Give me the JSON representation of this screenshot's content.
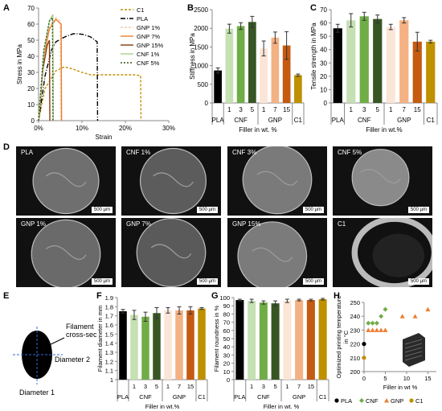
{
  "panel_letters": {
    "A": "A",
    "B": "B",
    "C": "C",
    "D": "D",
    "E": "E",
    "F": "F",
    "G": "G",
    "H": "H"
  },
  "colors": {
    "PLA": "#000000",
    "CNF1": "#c5e0b3",
    "CNF3": "#70ad47",
    "CNF5": "#375623",
    "GNP1": "#fbe5d6",
    "GNP7": "#f4b183",
    "GNP15": "#c55a11",
    "C1": "#bf9000",
    "CNF": "#70ad47",
    "GNP": "#f4b183",
    "C1H": "#bf9000"
  },
  "chart_data": [
    {
      "id": "A",
      "type": "line",
      "xlabel": "Strain",
      "ylabel": "Stress in MPa",
      "xlim": [
        0,
        30
      ],
      "ylim": [
        0,
        70
      ],
      "xticks": [
        "0%",
        "10%",
        "20%",
        "30%"
      ],
      "yticks": [
        "0",
        "10",
        "20",
        "30",
        "40",
        "50",
        "60",
        "70"
      ],
      "legend_position": "top-right",
      "series": [
        {
          "name": "C1",
          "color": "#bf9000",
          "dash": "3,2",
          "x": [
            0,
            1.5,
            4,
            6,
            8,
            10,
            12,
            14,
            22,
            23.5,
            23.6
          ],
          "y": [
            0,
            20,
            31,
            33.5,
            32,
            30,
            28.5,
            28.5,
            28.5,
            28,
            0
          ]
        },
        {
          "name": "PLA",
          "color": "#000000",
          "dash": "6,2,1,2",
          "x": [
            0,
            1.5,
            3,
            4,
            6,
            8,
            9,
            10.5,
            12,
            13,
            13.5,
            13.6
          ],
          "y": [
            0,
            28,
            44,
            49,
            52,
            54,
            54,
            53.5,
            52,
            50,
            49,
            0
          ]
        },
        {
          "name": "GNP 1%",
          "color": "#f7c9a5",
          "dash": "3,2",
          "x": [
            0,
            1.2,
            2.5,
            4,
            5,
            5.1
          ],
          "y": [
            0,
            40,
            58,
            64,
            62,
            0
          ]
        },
        {
          "name": "GNP 7%",
          "color": "#ed7d31",
          "dash": "",
          "x": [
            0,
            1.2,
            2.5,
            4,
            5.2,
            5.3
          ],
          "y": [
            0,
            40,
            57,
            63,
            60,
            0
          ]
        },
        {
          "name": "GNP 15%",
          "color": "#843c0c",
          "dash": "",
          "x": [
            0,
            1,
            2,
            2.5,
            2.6
          ],
          "y": [
            0,
            32,
            47,
            50,
            0
          ]
        },
        {
          "name": "CNF 1%",
          "color": "#a9d18e",
          "dash": "",
          "x": [
            0,
            1.2,
            2.5,
            3.3,
            3.4
          ],
          "y": [
            0,
            42,
            62,
            66,
            0
          ]
        },
        {
          "name": "CNF 5%",
          "color": "#375623",
          "dash": "2,2",
          "x": [
            0,
            1.2,
            2.5,
            3.2,
            3.3
          ],
          "y": [
            0,
            44,
            62,
            64,
            0
          ]
        }
      ]
    },
    {
      "id": "B",
      "type": "bar",
      "ylabel": "Stiffness in MPa",
      "xlabel": "Filler in wt. %",
      "ylim": [
        0,
        2500
      ],
      "yticks": [
        "0",
        "500",
        "1000",
        "1500",
        "2000",
        "2500"
      ],
      "categories": [
        "PLA",
        "1",
        "3",
        "5",
        "1",
        "7",
        "15",
        "C1"
      ],
      "groups": [
        "PLA",
        "CNF",
        "GNP",
        "C1"
      ],
      "values": [
        870,
        1990,
        2060,
        2170,
        1460,
        1750,
        1540,
        745
      ],
      "errors": [
        70,
        120,
        90,
        150,
        200,
        150,
        370,
        30
      ]
    },
    {
      "id": "C",
      "type": "bar",
      "ylabel": "Tensile strength in MPa",
      "xlabel": "Filler in wt.%",
      "ylim": [
        0,
        70
      ],
      "yticks": [
        "0",
        "10",
        "20",
        "30",
        "40",
        "50",
        "60",
        "70"
      ],
      "categories": [
        "PLA",
        "1",
        "3",
        "5",
        "1",
        "7",
        "15",
        "C1"
      ],
      "groups": [
        "PLA",
        "CNF",
        "GNP",
        "C1"
      ],
      "values": [
        56,
        62,
        65,
        63,
        57,
        62,
        46,
        46
      ],
      "errors": [
        3,
        5,
        3,
        3,
        2,
        2,
        7,
        1
      ]
    },
    {
      "id": "F",
      "type": "bar",
      "ylabel": "Filament diameter in mm",
      "xlabel": "Filler in wt.%",
      "ylim": [
        1,
        1.9
      ],
      "yticks": [
        "1",
        "1.1",
        "1.2",
        "1.3",
        "1.4",
        "1.5",
        "1.6",
        "1.7",
        "1.8",
        "1.9"
      ],
      "categories": [
        "PLA",
        "1",
        "3",
        "5",
        "1",
        "7",
        "15",
        "C1"
      ],
      "groups": [
        "PLA",
        "CNF",
        "GNP",
        "C1"
      ],
      "values": [
        1.75,
        1.71,
        1.69,
        1.73,
        1.76,
        1.76,
        1.76,
        1.78
      ],
      "errors": [
        0.02,
        0.05,
        0.05,
        0.06,
        0.03,
        0.04,
        0.04,
        0.01
      ]
    },
    {
      "id": "G",
      "type": "bar",
      "ylabel": "Filament roundness in %",
      "xlabel": "Filler in wt. %",
      "ylim": [
        0,
        100
      ],
      "yticks": [
        "0",
        "10",
        "20",
        "30",
        "40",
        "50",
        "60",
        "70",
        "80",
        "90",
        "100"
      ],
      "categories": [
        "PLA",
        "1",
        "3",
        "5",
        "1",
        "7",
        "15",
        "C1"
      ],
      "groups": [
        "PLA",
        "CNF",
        "GNP",
        "C1"
      ],
      "values": [
        97,
        96,
        94,
        93,
        96,
        97,
        97,
        98
      ],
      "errors": [
        1,
        2,
        2,
        3,
        2,
        1,
        1,
        1
      ]
    },
    {
      "id": "H",
      "type": "scatter",
      "ylabel": "Optimized printing temperature in °C",
      "xlabel": "Filler in wt %",
      "xlim": [
        0,
        17
      ],
      "ylim": [
        200,
        250
      ],
      "xticks": [
        "0",
        "5",
        "10",
        "15"
      ],
      "yticks": [
        "200",
        "210",
        "220",
        "230",
        "240",
        "250"
      ],
      "legend_position": "bottom",
      "series": [
        {
          "name": "PLA",
          "marker": "circle",
          "color": "#000000",
          "x": [
            0
          ],
          "y": [
            220
          ]
        },
        {
          "name": "CNF",
          "marker": "diamond",
          "color": "#70ad47",
          "x": [
            1,
            2,
            3,
            4,
            5
          ],
          "y": [
            235,
            235,
            235,
            240,
            245
          ]
        },
        {
          "name": "GNP",
          "marker": "triangle",
          "color": "#ed7d31",
          "x": [
            1,
            2,
            3,
            4,
            5,
            9,
            12,
            15
          ],
          "y": [
            230,
            230,
            230,
            230,
            230,
            240,
            240,
            245
          ]
        },
        {
          "name": "C1",
          "marker": "circle",
          "color": "#bf9000",
          "x": [
            0
          ],
          "y": [
            210
          ]
        }
      ]
    }
  ],
  "sem_images": [
    {
      "label": "PLA",
      "scale": "500 µm"
    },
    {
      "label": "CNF 1%",
      "scale": "500 µm"
    },
    {
      "label": "CNF 3%",
      "scale": "500 µm"
    },
    {
      "label": "CNF 5%",
      "scale": "500 µm"
    },
    {
      "label": "GNP 1%",
      "scale": "500 µm"
    },
    {
      "label": "GNP 7%",
      "scale": "500 µm"
    },
    {
      "label": "GNP 15%",
      "scale": "500 µm"
    },
    {
      "label": "C1",
      "scale": "500 µm"
    }
  ],
  "diagram_E": {
    "cross_section": "Filament\ncross-section",
    "diameter1": "Diameter 1",
    "diameter2": "Diameter 2"
  }
}
